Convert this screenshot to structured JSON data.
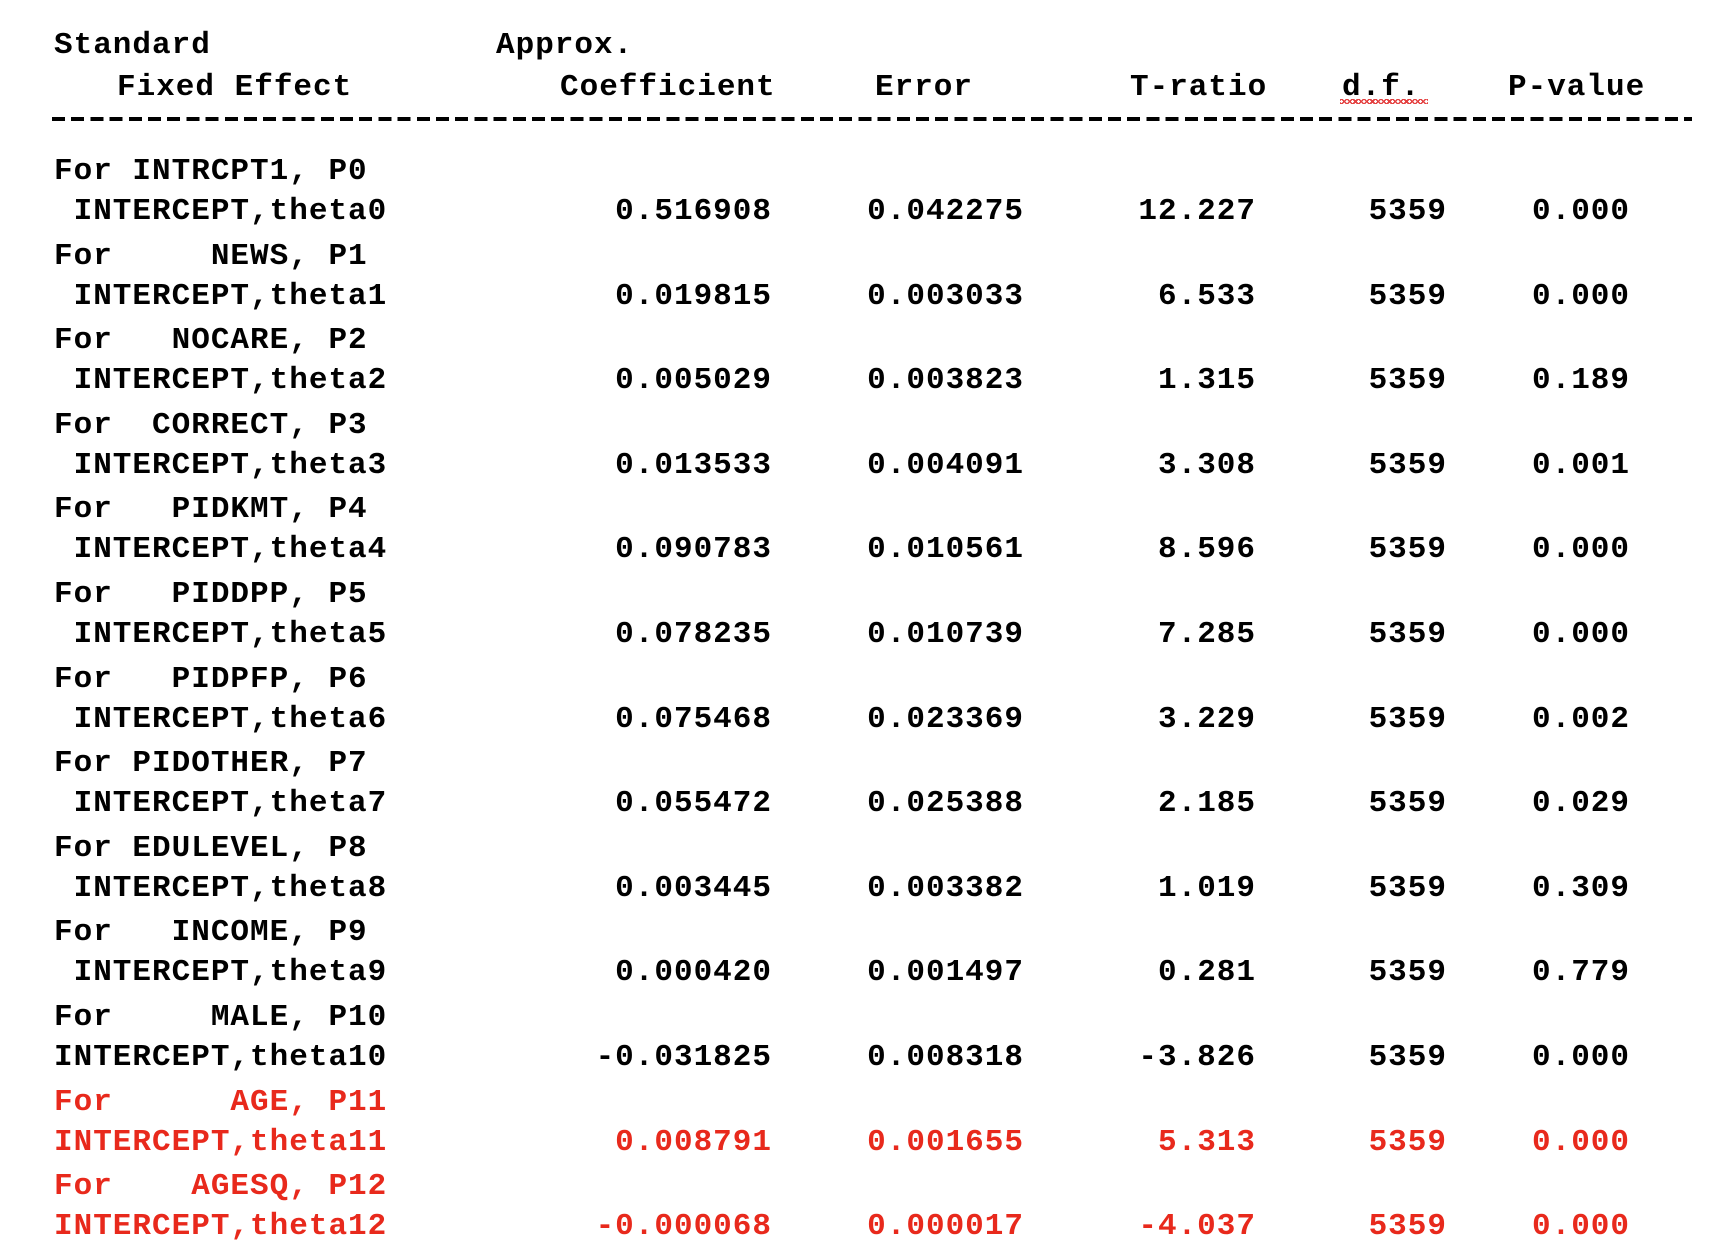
{
  "colors": {
    "text": "#000000",
    "highlight": "#e8291c"
  },
  "header": {
    "line1_left": "Standard",
    "line1_right": "Approx.",
    "fixed_effect": "Fixed Effect",
    "coefficient": "Coefficient",
    "error": "Error",
    "t_ratio": "T-ratio",
    "df": "d.f.",
    "p_value": "P-value"
  },
  "rows": [
    {
      "for_label": "For INTRCPT1, P0",
      "term": " INTERCEPT,theta0",
      "coef": "0.516908",
      "se": "0.042275",
      "t": "12.227",
      "df": "5359",
      "p": "0.000",
      "highlight": false
    },
    {
      "for_label": "For     NEWS, P1",
      "term": " INTERCEPT,theta1",
      "coef": "0.019815",
      "se": "0.003033",
      "t": "6.533",
      "df": "5359",
      "p": "0.000",
      "highlight": false
    },
    {
      "for_label": "For   NOCARE, P2",
      "term": " INTERCEPT,theta2",
      "coef": "0.005029",
      "se": "0.003823",
      "t": "1.315",
      "df": "5359",
      "p": "0.189",
      "highlight": false
    },
    {
      "for_label": "For  CORRECT, P3",
      "term": " INTERCEPT,theta3",
      "coef": "0.013533",
      "se": "0.004091",
      "t": "3.308",
      "df": "5359",
      "p": "0.001",
      "highlight": false
    },
    {
      "for_label": "For   PIDKMT, P4",
      "term": " INTERCEPT,theta4",
      "coef": "0.090783",
      "se": "0.010561",
      "t": "8.596",
      "df": "5359",
      "p": "0.000",
      "highlight": false
    },
    {
      "for_label": "For   PIDDPP, P5",
      "term": " INTERCEPT,theta5",
      "coef": "0.078235",
      "se": "0.010739",
      "t": "7.285",
      "df": "5359",
      "p": "0.000",
      "highlight": false
    },
    {
      "for_label": "For   PIDPFP, P6",
      "term": " INTERCEPT,theta6",
      "coef": "0.075468",
      "se": "0.023369",
      "t": "3.229",
      "df": "5359",
      "p": "0.002",
      "highlight": false
    },
    {
      "for_label": "For PIDOTHER, P7",
      "term": " INTERCEPT,theta7",
      "coef": "0.055472",
      "se": "0.025388",
      "t": "2.185",
      "df": "5359",
      "p": "0.029",
      "highlight": false
    },
    {
      "for_label": "For EDULEVEL, P8",
      "term": " INTERCEPT,theta8",
      "coef": "0.003445",
      "se": "0.003382",
      "t": "1.019",
      "df": "5359",
      "p": "0.309",
      "highlight": false
    },
    {
      "for_label": "For   INCOME, P9",
      "term": " INTERCEPT,theta9",
      "coef": "0.000420",
      "se": "0.001497",
      "t": "0.281",
      "df": "5359",
      "p": "0.779",
      "highlight": false
    },
    {
      "for_label": "For     MALE, P10",
      "term": "INTERCEPT,theta10",
      "coef": "-0.031825",
      "se": "0.008318",
      "t": "-3.826",
      "df": "5359",
      "p": "0.000",
      "highlight": false
    },
    {
      "for_label": "For      AGE, P11",
      "term": "INTERCEPT,theta11",
      "coef": "0.008791",
      "se": "0.001655",
      "t": "5.313",
      "df": "5359",
      "p": "0.000",
      "highlight": true
    },
    {
      "for_label": "For    AGESQ, P12",
      "term": "INTERCEPT,theta12",
      "coef": "-0.000068",
      "se": "0.000017",
      "t": "-4.037",
      "df": "5359",
      "p": "0.000",
      "highlight": true
    }
  ]
}
